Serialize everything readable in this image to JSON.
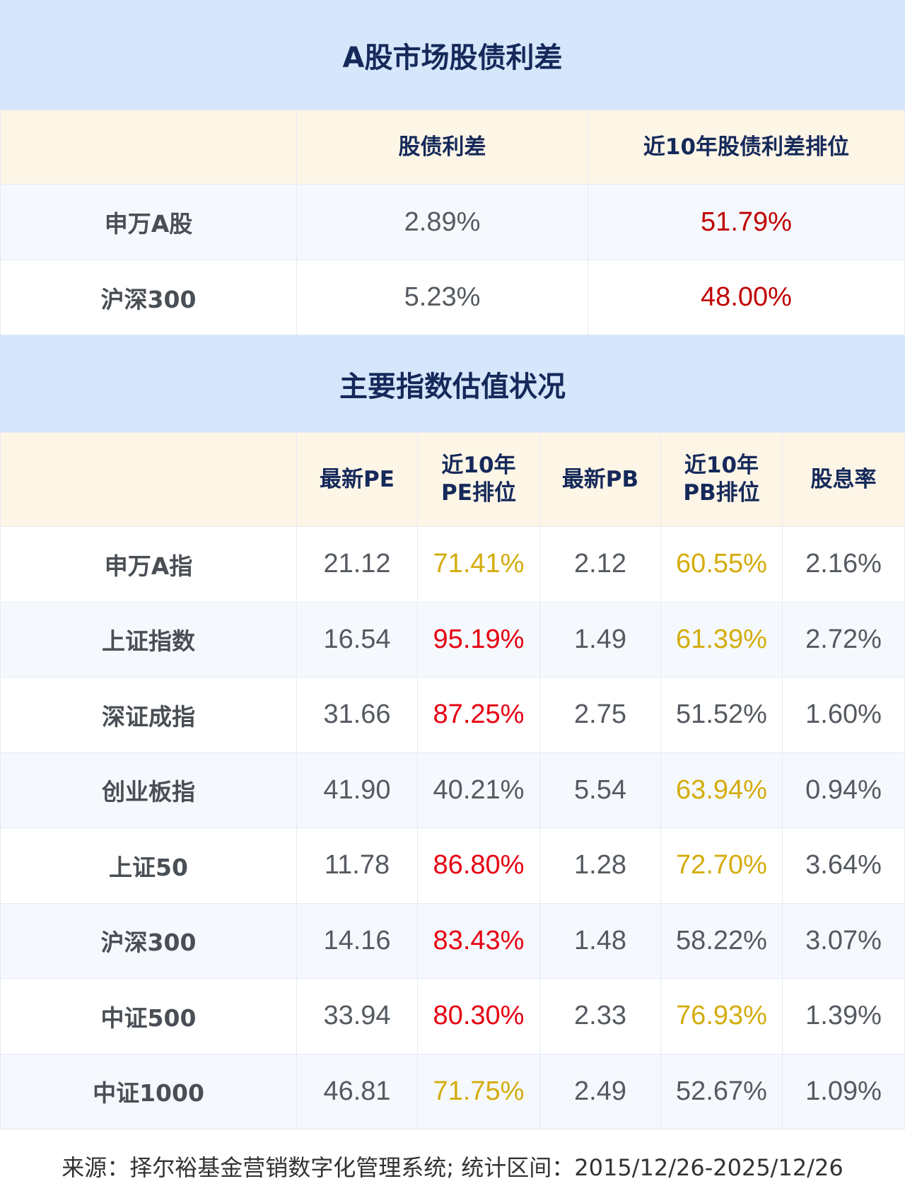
{
  "spread_section": {
    "title": "A股市场股债利差",
    "headers": [
      "",
      "股债利差",
      "近10年股债利差排位"
    ],
    "rows": [
      {
        "name": "申万A股",
        "spread": "2.89%",
        "rank": "51.79%"
      },
      {
        "name": "沪深300",
        "spread": "5.23%",
        "rank": "48.00%"
      }
    ]
  },
  "valuation_section": {
    "title": "主要指数估值状况",
    "headers": [
      "",
      "最新PE",
      "近10年PE排位",
      "最新PB",
      "近10年PB排位",
      "股息率"
    ],
    "rows": [
      {
        "name": "申万A指",
        "pe": "21.12",
        "pe_rank": "71.41%",
        "pb": "2.12",
        "pb_rank": "60.55%",
        "dy": "2.16%",
        "pe_color": "yellow",
        "pb_color": "yellow"
      },
      {
        "name": "上证指数",
        "pe": "16.54",
        "pe_rank": "95.19%",
        "pb": "1.49",
        "pb_rank": "61.39%",
        "dy": "2.72%",
        "pe_color": "red",
        "pb_color": "yellow"
      },
      {
        "name": "深证成指",
        "pe": "31.66",
        "pe_rank": "87.25%",
        "pb": "2.75",
        "pb_rank": "51.52%",
        "dy": "1.60%",
        "pe_color": "red",
        "pb_color": "grey"
      },
      {
        "name": "创业板指",
        "pe": "41.90",
        "pe_rank": "40.21%",
        "pb": "5.54",
        "pb_rank": "63.94%",
        "dy": "0.94%",
        "pe_color": "grey",
        "pb_color": "yellow"
      },
      {
        "name": "上证50",
        "pe": "11.78",
        "pe_rank": "86.80%",
        "pb": "1.28",
        "pb_rank": "72.70%",
        "dy": "3.64%",
        "pe_color": "red",
        "pb_color": "yellow"
      },
      {
        "name": "沪深300",
        "pe": "14.16",
        "pe_rank": "83.43%",
        "pb": "1.48",
        "pb_rank": "58.22%",
        "dy": "3.07%",
        "pe_color": "red",
        "pb_color": "grey"
      },
      {
        "name": "中证500",
        "pe": "33.94",
        "pe_rank": "80.30%",
        "pb": "2.33",
        "pb_rank": "76.93%",
        "dy": "1.39%",
        "pe_color": "red",
        "pb_color": "yellow"
      },
      {
        "name": "中证1000",
        "pe": "46.81",
        "pe_rank": "71.75%",
        "pb": "2.49",
        "pb_rank": "52.67%",
        "dy": "1.09%",
        "pe_color": "yellow",
        "pb_color": "grey"
      }
    ]
  },
  "colors": {
    "red": "#e60012",
    "dark_red": "#c00000",
    "yellow": "#d4ac0d",
    "grey": "#555a60",
    "title_bg": "#d6e6fb",
    "header_bg": "#fdf5e6"
  },
  "footer": "来源：择尔裕基金营销数字化管理系统;  统计区间：2015/12/26-2025/12/26"
}
